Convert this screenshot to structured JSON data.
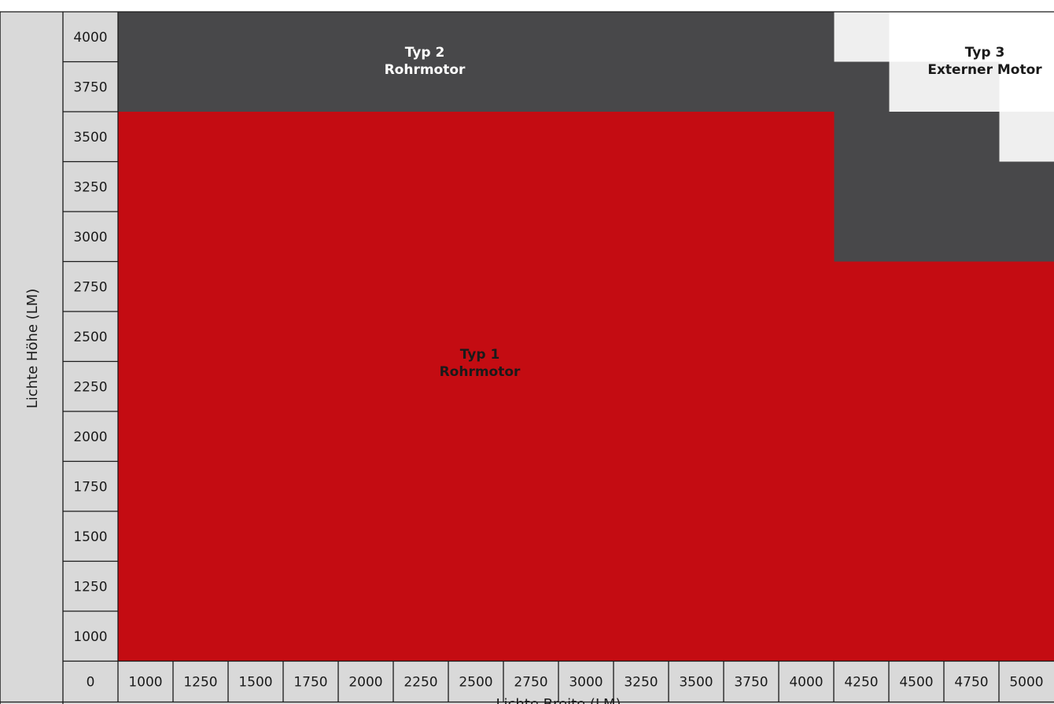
{
  "chart_data": {
    "type": "heatmap",
    "xlabel": "Lichte Breite (LM)",
    "ylabel": "Lichte Höhe (LM)",
    "x_ticks": [
      "0",
      "1000",
      "1250",
      "1500",
      "1750",
      "2000",
      "2250",
      "2500",
      "2750",
      "3000",
      "3250",
      "3500",
      "3750",
      "4000",
      "4250",
      "4500",
      "4750",
      "5000"
    ],
    "y_ticks": [
      "4000",
      "3750",
      "3500",
      "3250",
      "3000",
      "2750",
      "2500",
      "2250",
      "2000",
      "1750",
      "1500",
      "1250",
      "1000"
    ],
    "x_values": [
      1000,
      1250,
      1500,
      1750,
      2000,
      2250,
      2500,
      2750,
      3000,
      3250,
      3500,
      3750,
      4000,
      4250,
      4500,
      4750,
      5000
    ],
    "y_values": [
      4000,
      3750,
      3500,
      3250,
      3000,
      2750,
      2500,
      2250,
      2000,
      1750,
      1500,
      1250,
      1000
    ],
    "zones": [
      {
        "id": "typ3",
        "label_line1": "Typ 3",
        "label_line2": "Externer Motor",
        "color": "#efefef",
        "text_color": "#1a1a1a",
        "max_height_by_width": {
          "4250": 4000,
          "4500": 3750,
          "4750": 3750,
          "5000": 3500
        }
      },
      {
        "id": "typ2",
        "label_line1": "Typ 2",
        "label_line2": "Rohrmotor",
        "color": "#48484a",
        "text_color": "#ffffff",
        "max_height_by_width": {
          "1000": 4000,
          "1250": 4000,
          "1500": 4000,
          "1750": 4000,
          "2000": 4000,
          "2250": 4000,
          "2500": 4000,
          "2750": 4000,
          "3000": 4000,
          "3250": 4000,
          "3500": 4000,
          "3750": 4000,
          "4000": 4000,
          "4250": 3750,
          "4500": 3500,
          "4750": 3500,
          "5000": 3250
        }
      },
      {
        "id": "typ1",
        "label_line1": "Typ 1",
        "label_line2": "Rohrmotor",
        "color": "#c40c12",
        "text_color": "#1a1a1a",
        "max_height_by_width": {
          "1000": 3500,
          "1250": 3500,
          "1500": 3500,
          "1750": 3500,
          "2000": 3500,
          "2250": 3500,
          "2500": 3500,
          "2750": 3500,
          "3000": 3500,
          "3250": 3500,
          "3500": 3500,
          "3750": 3500,
          "4000": 3500,
          "4250": 2750,
          "4500": 2750,
          "4750": 2750,
          "5000": 2750
        }
      }
    ],
    "cell_bg": "#d9d9d9",
    "grid_color": "#1a1a1a"
  }
}
